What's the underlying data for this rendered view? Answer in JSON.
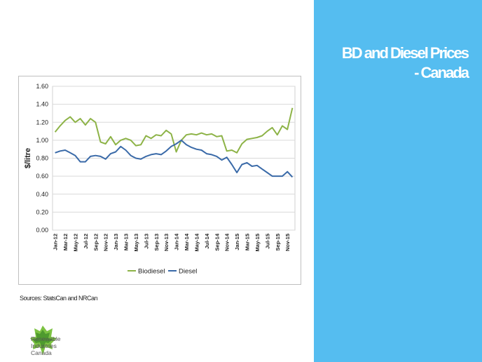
{
  "slide": {
    "title_line1": "BD and Diesel Prices",
    "title_line2": "- Canada",
    "sources": "Sources: StatsCan and NRCan",
    "panel_color": "#55bdf0"
  },
  "logo": {
    "line1": "Renewable",
    "line2": "Industries",
    "line3": "Canada",
    "icon": "green-maple-leaf-icon"
  },
  "chart_data": {
    "type": "line",
    "ylabel": "$/litre",
    "ylim": [
      0,
      1.6
    ],
    "yticks": [
      "0.00",
      "0.20",
      "0.40",
      "0.60",
      "0.80",
      "1.00",
      "1.20",
      "1.40",
      "1.60"
    ],
    "x": [
      "Jan-12",
      "Feb-12",
      "Mar-12",
      "Apr-12",
      "May-12",
      "Jun-12",
      "Jul-12",
      "Aug-12",
      "Sep-12",
      "Oct-12",
      "Nov-12",
      "Dec-12",
      "Jan-13",
      "Feb-13",
      "Mar-13",
      "Apr-13",
      "May-13",
      "Jun-13",
      "Jul-13",
      "Aug-13",
      "Sep-13",
      "Oct-13",
      "Nov-13",
      "Dec-13",
      "Jan-14",
      "Feb-14",
      "Mar-14",
      "Apr-14",
      "May-14",
      "Jun-14",
      "Jul-14",
      "Aug-14",
      "Sep-14",
      "Oct-14",
      "Nov-14",
      "Dec-14",
      "Jan-15",
      "Feb-15",
      "Mar-15",
      "Apr-15",
      "May-15",
      "Jun-15",
      "Jul-15",
      "Aug-15",
      "Sep-15",
      "Oct-15",
      "Nov-15",
      "Dec-15"
    ],
    "xtick_labels": [
      "Jan-12",
      "Mar-12",
      "May-12",
      "Jul-12",
      "Sep-12",
      "Nov-12",
      "Jan-13",
      "Mar-13",
      "May-13",
      "Jul-13",
      "Sep-13",
      "Nov-13",
      "Jan-14",
      "Mar-14",
      "May-14",
      "Jul-14",
      "Sep-14",
      "Nov-14",
      "Jan-15",
      "Mar-15",
      "May-15",
      "Jul-15",
      "Sep-15",
      "Nov-15"
    ],
    "grid": true,
    "legend_position": "bottom",
    "series": [
      {
        "name": "Biodiesel",
        "color": "#8db347",
        "values": [
          1.09,
          1.16,
          1.22,
          1.26,
          1.2,
          1.24,
          1.17,
          1.24,
          1.2,
          0.98,
          0.96,
          1.04,
          0.95,
          1.0,
          1.02,
          1.0,
          0.94,
          0.95,
          1.05,
          1.02,
          1.06,
          1.05,
          1.11,
          1.07,
          0.87,
          1.0,
          1.06,
          1.07,
          1.06,
          1.08,
          1.06,
          1.07,
          1.04,
          1.05,
          0.88,
          0.89,
          0.86,
          0.96,
          1.01,
          1.02,
          1.03,
          1.05,
          1.1,
          1.14,
          1.06,
          1.16,
          1.12,
          1.36
        ]
      },
      {
        "name": "Diesel",
        "color": "#3a6aa8",
        "values": [
          0.86,
          0.88,
          0.89,
          0.86,
          0.83,
          0.76,
          0.76,
          0.82,
          0.83,
          0.82,
          0.79,
          0.85,
          0.87,
          0.93,
          0.89,
          0.83,
          0.8,
          0.79,
          0.82,
          0.84,
          0.85,
          0.84,
          0.88,
          0.93,
          0.96,
          1.0,
          0.95,
          0.92,
          0.9,
          0.89,
          0.85,
          0.84,
          0.82,
          0.78,
          0.81,
          0.73,
          0.64,
          0.73,
          0.75,
          0.71,
          0.72,
          0.68,
          0.64,
          0.6,
          0.6,
          0.6,
          0.65,
          0.59
        ]
      }
    ]
  }
}
